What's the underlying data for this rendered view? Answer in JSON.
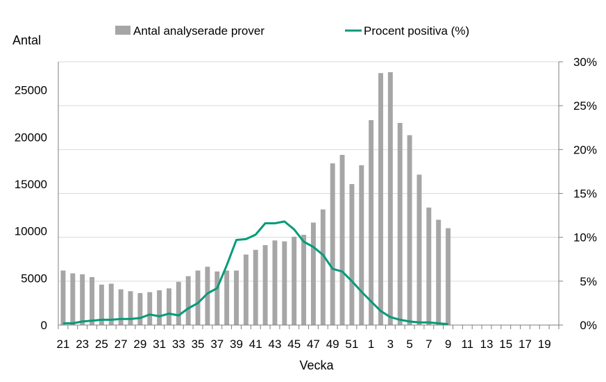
{
  "chart_data": {
    "type": "bar+line",
    "xlabel": "Vecka",
    "ylabel_left": "Antal",
    "ylim_left": [
      0,
      28000
    ],
    "yticks_left": [
      "0",
      "5000",
      "10000",
      "15000",
      "20000",
      "25000"
    ],
    "ylim_right": [
      0,
      30
    ],
    "yticks_right": [
      "0%",
      "5%",
      "10%",
      "15%",
      "20%",
      "25%",
      "30%"
    ],
    "grid": "horizontal",
    "legend_position": "top",
    "categories": [
      "21",
      "22",
      "23",
      "24",
      "25",
      "26",
      "27",
      "28",
      "29",
      "30",
      "31",
      "32",
      "33",
      "34",
      "35",
      "36",
      "37",
      "38",
      "39",
      "40",
      "41",
      "42",
      "43",
      "44",
      "45",
      "46",
      "47",
      "48",
      "49",
      "50",
      "51",
      "52",
      "1",
      "2",
      "3",
      "4",
      "5",
      "6",
      "7",
      "8",
      "9",
      "10",
      "11",
      "12",
      "13",
      "14",
      "15",
      "16",
      "17",
      "18",
      "19",
      "20"
    ],
    "x_tick_labels": [
      "21",
      "23",
      "25",
      "27",
      "29",
      "31",
      "33",
      "35",
      "37",
      "39",
      "41",
      "43",
      "45",
      "47",
      "49",
      "51",
      "1",
      "3",
      "5",
      "7",
      "9",
      "11",
      "13",
      "15",
      "17",
      "19"
    ],
    "series": [
      {
        "name": "Antal analyserade prover",
        "kind": "bar",
        "axis": "left",
        "color": "#a6a6a6",
        "values": [
          5800,
          5500,
          5400,
          5100,
          4300,
          4400,
          3800,
          3600,
          3400,
          3500,
          3700,
          3900,
          4600,
          5200,
          5800,
          6200,
          5700,
          5800,
          5800,
          7500,
          8000,
          8500,
          9000,
          8900,
          9400,
          9600,
          10900,
          12300,
          17200,
          18100,
          15000,
          17000,
          21800,
          26800,
          26900,
          21500,
          20200,
          16000,
          12500,
          11200,
          10300,
          null,
          null,
          null,
          null,
          null,
          null,
          null,
          null,
          null,
          null,
          null
        ]
      },
      {
        "name": "Procent positiva (%)",
        "kind": "line",
        "axis": "right",
        "color": "#009b77",
        "values": [
          0.2,
          0.2,
          0.4,
          0.5,
          0.6,
          0.6,
          0.7,
          0.7,
          0.8,
          1.2,
          1.0,
          1.3,
          1.1,
          1.9,
          2.5,
          3.6,
          4.2,
          6.8,
          9.7,
          9.8,
          10.3,
          11.6,
          11.6,
          11.8,
          10.9,
          9.5,
          8.9,
          8.0,
          6.4,
          6.1,
          5.0,
          3.8,
          2.7,
          1.6,
          0.9,
          0.6,
          0.4,
          0.3,
          0.3,
          0.2,
          0.1,
          null,
          null,
          null,
          null,
          null,
          null,
          null,
          null,
          null,
          null,
          null
        ]
      }
    ]
  }
}
